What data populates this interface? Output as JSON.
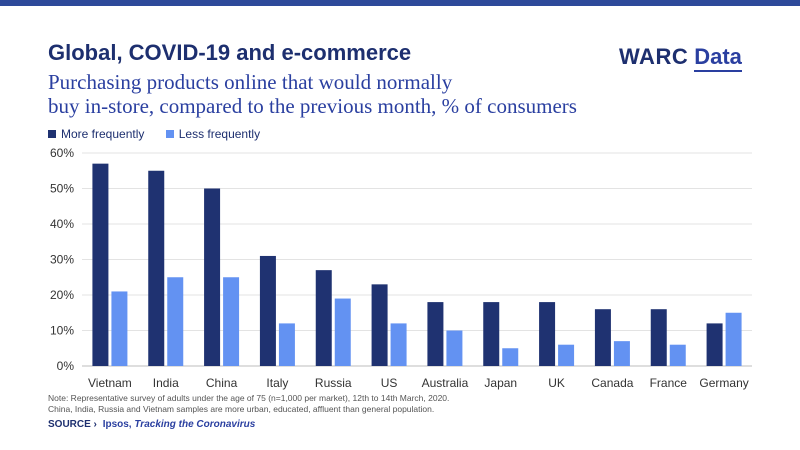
{
  "header": {
    "title": "Global, COVID-19 and e-commerce",
    "subtitle_line1": "Purchasing products online that would normally",
    "subtitle_line2": "buy in-store, compared to the previous month, % of consumers",
    "logo_warc": "WARC",
    "logo_data": "Data"
  },
  "colors": {
    "accent_bar": "#2e4a9a",
    "more": "#1f3271",
    "less": "#6392f2"
  },
  "chart_data": {
    "type": "bar",
    "categories": [
      "Vietnam",
      "India",
      "China",
      "Italy",
      "Russia",
      "US",
      "Australia",
      "Japan",
      "UK",
      "Canada",
      "France",
      "Germany"
    ],
    "series": [
      {
        "name": "More frequently",
        "values": [
          57,
          55,
          50,
          31,
          27,
          23,
          18,
          18,
          18,
          16,
          16,
          12
        ]
      },
      {
        "name": "Less frequently",
        "values": [
          21,
          25,
          25,
          12,
          19,
          12,
          10,
          5,
          6,
          7,
          6,
          15
        ]
      }
    ],
    "yticks": [
      "0%",
      "10%",
      "20%",
      "30%",
      "40%",
      "50%",
      "60%"
    ],
    "ylim": [
      0,
      60
    ],
    "grid": true,
    "legend_position": "top-left"
  },
  "footer": {
    "note_line1": "Note: Representative survey of adults under the age of 75 (n=1,000 per market), 12th to 14th March, 2020.",
    "note_line2": "China, India, Russia and Vietnam samples are more urban, educated, affluent than general population.",
    "source_label": "SOURCE ›",
    "source_name": "Ipsos,",
    "source_title": "Tracking the Coronavirus"
  }
}
